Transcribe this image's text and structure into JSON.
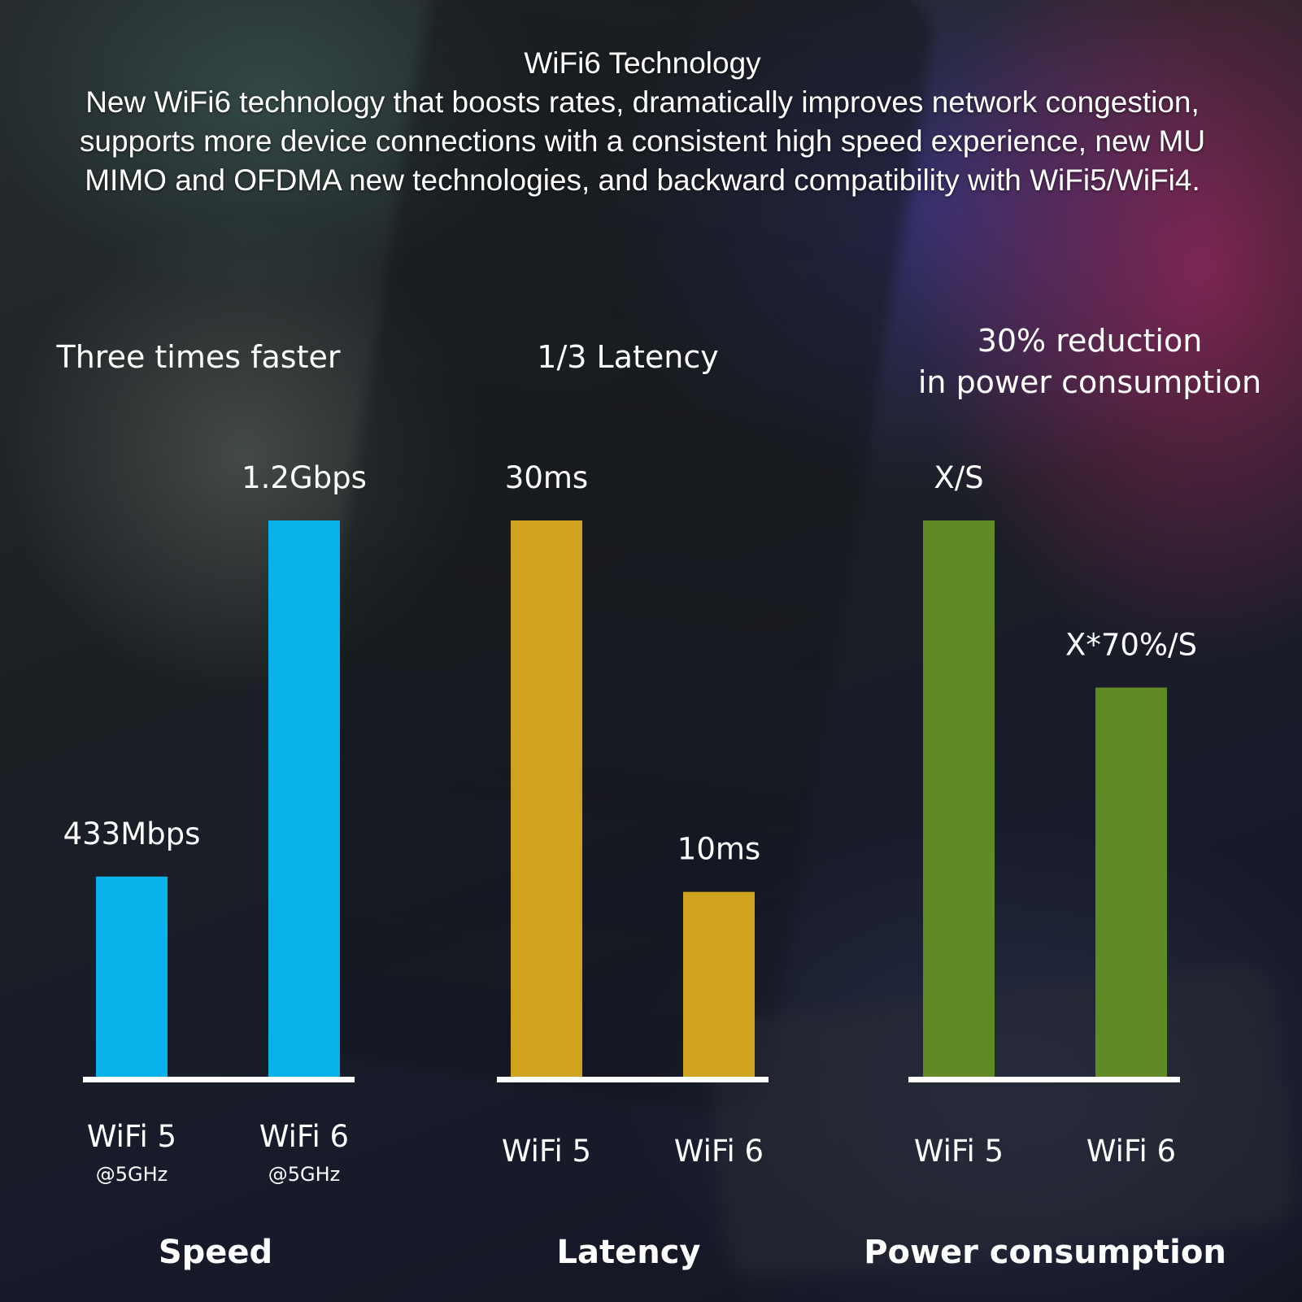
{
  "header": {
    "title": "WiFi6 Technology",
    "description": "New WiFi6 technology that boosts rates, dramatically improves network congestion, supports more device connections with a consistent high speed experience, new MU MIMO and OFDMA new technologies, and backward compatibility with WiFi5/WiFi4."
  },
  "chart_data": [
    {
      "type": "bar",
      "title": "Speed",
      "subtitle": [
        "Three times faster"
      ],
      "categories": [
        "WiFi 5",
        "WiFi 6"
      ],
      "sublabels": [
        "@5GHz",
        "@5GHz"
      ],
      "value_labels": [
        "433Mbps",
        "1.2Gbps"
      ],
      "values": [
        433,
        1200
      ],
      "unit": "Mbps",
      "color": "#0ab2ec"
    },
    {
      "type": "bar",
      "title": "Latency",
      "subtitle": [
        "1/3 Latency"
      ],
      "categories": [
        "WiFi 5",
        "WiFi 6"
      ],
      "sublabels": [
        "",
        ""
      ],
      "value_labels": [
        "30ms",
        "10ms"
      ],
      "values": [
        30,
        10
      ],
      "unit": "ms",
      "color": "#cfa21f"
    },
    {
      "type": "bar",
      "title": "Power consumption",
      "subtitle": [
        "30% reduction",
        "in power consumption"
      ],
      "categories": [
        "WiFi 5",
        "WiFi 6"
      ],
      "sublabels": [
        "",
        ""
      ],
      "value_labels": [
        "X/S",
        "X*70%/S"
      ],
      "values": [
        1.0,
        0.7
      ],
      "unit": "",
      "color": "#5f8a26"
    }
  ]
}
